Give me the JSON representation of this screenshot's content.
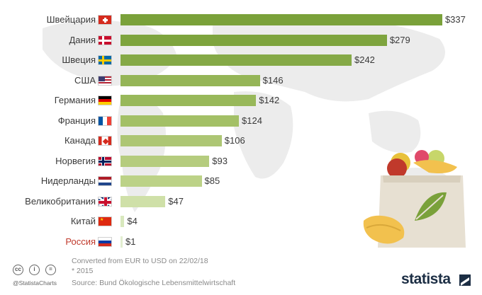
{
  "chart_data": {
    "type": "bar",
    "orientation": "horizontal",
    "categories": [
      "Швейцария",
      "Дания",
      "Швеция",
      "США",
      "Германия",
      "Франция",
      "Канада",
      "Норвегия",
      "Нидерланды",
      "Великобритания",
      "Китай",
      "Россия"
    ],
    "values": [
      337,
      279,
      242,
      146,
      142,
      124,
      106,
      93,
      85,
      47,
      4,
      1
    ],
    "value_labels": [
      "$337",
      "$279",
      "$242",
      "$146",
      "$142",
      "$124",
      "$106",
      "$93",
      "$85",
      "$47",
      "$4",
      "$1"
    ],
    "flags": [
      "switzerland",
      "denmark",
      "sweden",
      "usa",
      "germany",
      "france",
      "canada",
      "norway",
      "netherlands",
      "uk",
      "china",
      "russia"
    ],
    "highlight_category": "Россия",
    "highlight_color": "#c0392b",
    "bar_colors": [
      "#7aa13a",
      "#7ea43e",
      "#85a947",
      "#95b557",
      "#98b85a",
      "#a3c066",
      "#adc674",
      "#b5cc7e",
      "#bcd287",
      "#cfe0a8",
      "#d8e8bd",
      "#e2eed0"
    ],
    "xlim": [
      0,
      340
    ],
    "grid": false,
    "legend": "none"
  },
  "footnotes": {
    "converted": "Converted from EUR to USD on 22/02/18",
    "asterisk": "* 2015",
    "source": "Source: Bund Ökologische Lebensmittelwirtschaft"
  },
  "branding": {
    "handle": "@StatistaCharts",
    "logo": "statista",
    "cc_icons": [
      "cc",
      "i",
      "="
    ]
  },
  "decor": {
    "background": "world-map-icon",
    "illustration": "grocery-bag-icon"
  }
}
